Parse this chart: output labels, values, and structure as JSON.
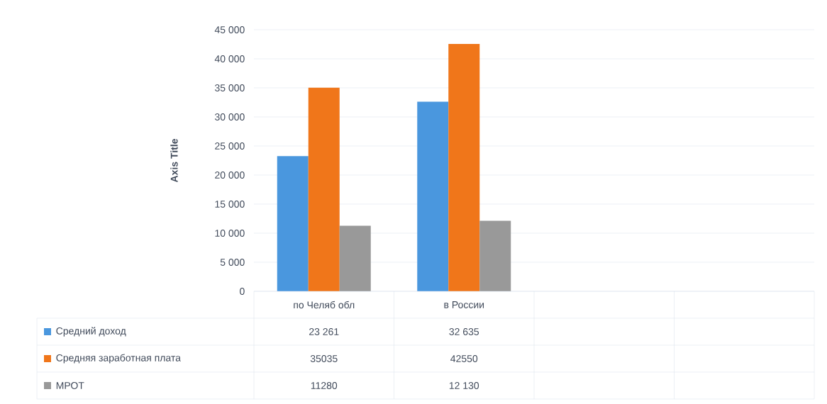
{
  "chart_data": {
    "type": "bar",
    "ylabel": "Axis Title",
    "categories": [
      "по Челяб обл",
      "в России",
      null,
      null
    ],
    "series": [
      {
        "name": "Средний доход",
        "color": "#4a97de",
        "values": [
          23261,
          32635,
          null,
          null
        ],
        "value_labels": [
          "23 261",
          "32 635",
          null,
          null
        ]
      },
      {
        "name": "Средняя заработная плата",
        "color": "#f0761a",
        "values": [
          35035,
          42550,
          null,
          null
        ],
        "value_labels": [
          "35035",
          "42550",
          null,
          null
        ]
      },
      {
        "name": "МРОТ",
        "color": "#999999",
        "values": [
          11280,
          12130,
          null,
          null
        ],
        "value_labels": [
          "11280",
          "12 130",
          null,
          null
        ]
      }
    ],
    "ylim": [
      0,
      45000
    ],
    "yticks": [
      {
        "value": 0,
        "label": "0"
      },
      {
        "value": 5000,
        "label": "5 000"
      },
      {
        "value": 10000,
        "label": "10 000"
      },
      {
        "value": 15000,
        "label": "15 000"
      },
      {
        "value": 20000,
        "label": "20 000"
      },
      {
        "value": 25000,
        "label": "25 000"
      },
      {
        "value": 30000,
        "label": "30 000"
      },
      {
        "value": 35000,
        "label": "35 000"
      },
      {
        "value": 40000,
        "label": "40 000"
      },
      {
        "value": 45000,
        "label": "45 000"
      }
    ],
    "grid": "y",
    "legend": "bottom"
  }
}
